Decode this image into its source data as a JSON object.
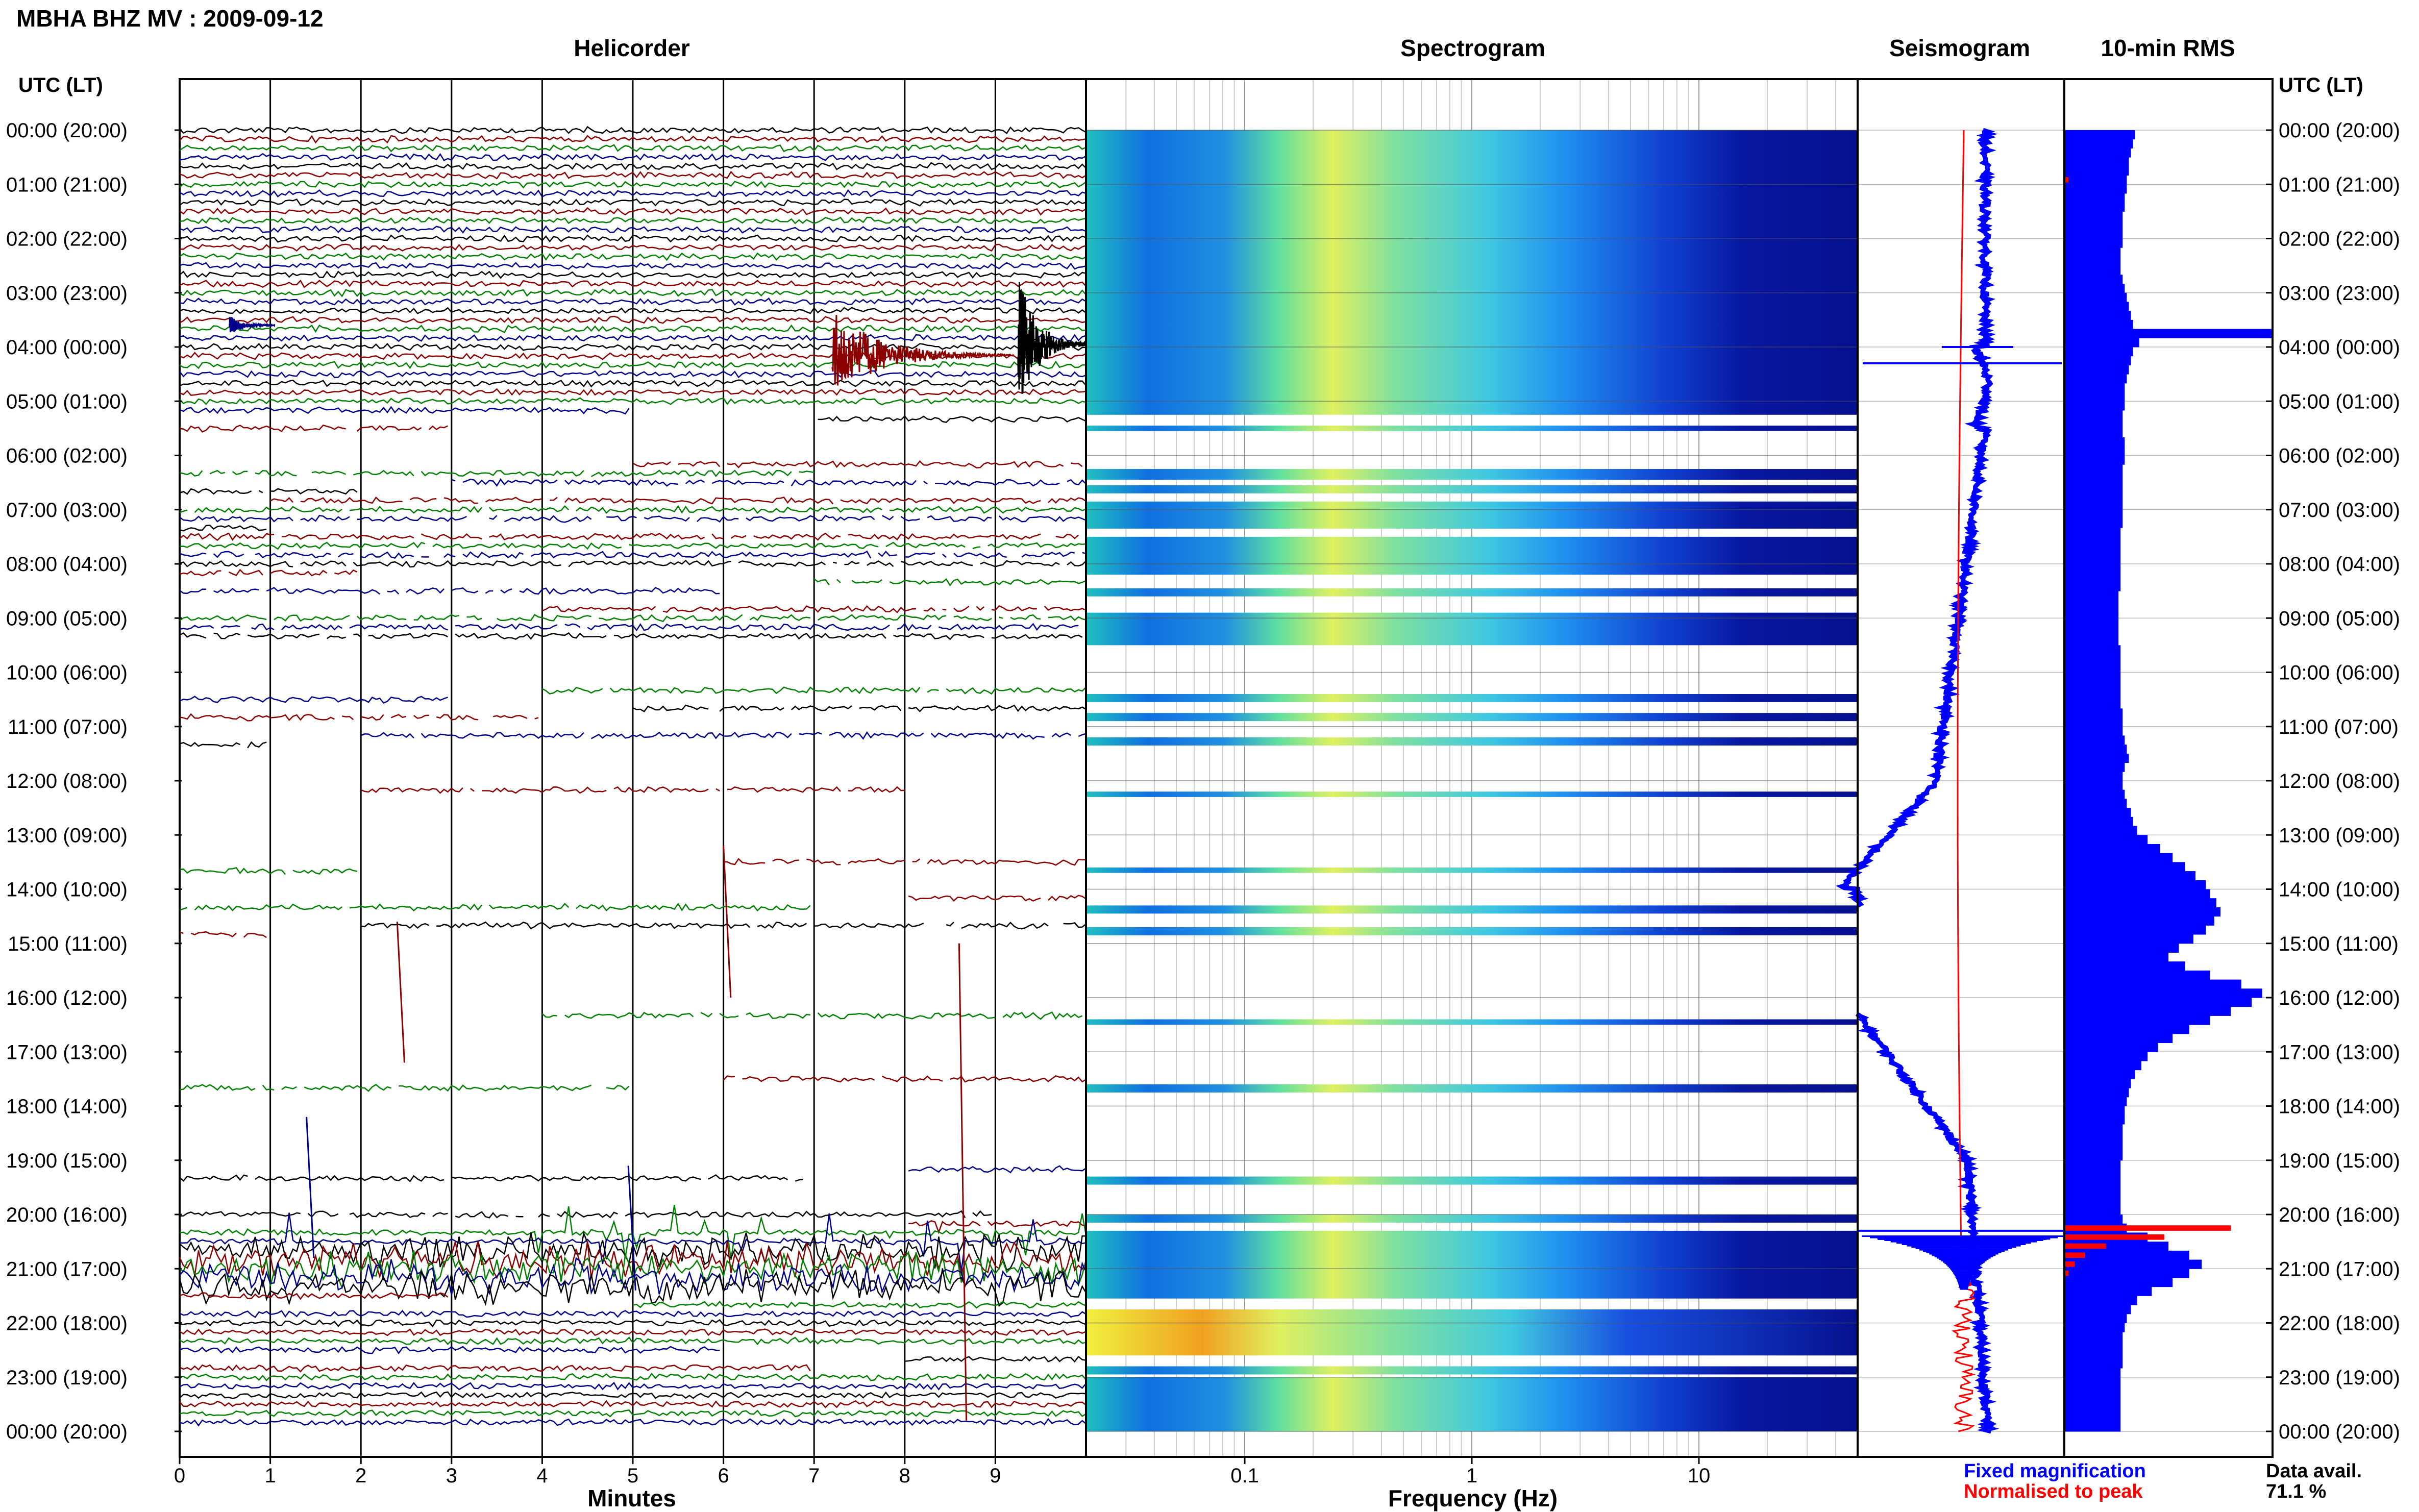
{
  "header": {
    "title": "MBHA BHZ MV : 2009-09-12"
  },
  "panels": {
    "helicorder": "Helicorder",
    "spectrogram": "Spectrogram",
    "seismogram": "Seismogram",
    "rms": "10-min RMS"
  },
  "axes": {
    "time_axis_label": "UTC (LT)",
    "minutes_label": "Minutes",
    "frequency_label": "Frequency (Hz)"
  },
  "legend": {
    "fixed": "Fixed magnification",
    "normalised": "Normalised to peak",
    "fixed_color": "#0000ff",
    "normalised_color": "#ff0000"
  },
  "availability": {
    "label": "Data avail.",
    "value": "71.1 %"
  },
  "colors": {
    "trace_cycle": [
      "#000000",
      "#8b0000",
      "#008000",
      "#00008b"
    ],
    "rms_bar": "#0000ff",
    "rms_peak": "#ff0000"
  },
  "chart_data": {
    "type": "heatmap",
    "time_ticks": [
      "00:00 (20:00)",
      "01:00 (21:00)",
      "02:00 (22:00)",
      "03:00 (23:00)",
      "04:00 (00:00)",
      "05:00 (01:00)",
      "06:00 (02:00)",
      "07:00 (03:00)",
      "08:00 (04:00)",
      "09:00 (05:00)",
      "10:00 (06:00)",
      "11:00 (07:00)",
      "12:00 (08:00)",
      "13:00 (09:00)",
      "14:00 (10:00)",
      "15:00 (11:00)",
      "16:00 (12:00)",
      "17:00 (13:00)",
      "18:00 (14:00)",
      "19:00 (15:00)",
      "20:00 (16:00)",
      "21:00 (17:00)",
      "22:00 (18:00)",
      "23:00 (19:00)",
      "00:00 (20:00)"
    ],
    "minute_ticks": [
      "0",
      "1",
      "2",
      "3",
      "4",
      "5",
      "6",
      "7",
      "8",
      "9"
    ],
    "minute_range": [
      0,
      10
    ],
    "frequency_ticks": [
      "0.1",
      "1",
      "10"
    ],
    "frequency_range": [
      0.02,
      50
    ],
    "frequency_scale": "log",
    "time_range_hours": [
      0,
      24
    ],
    "rms_bars_10min": [
      0.34,
      0.33,
      0.32,
      0.31,
      0.31,
      0.3,
      0.3,
      0.29,
      0.29,
      0.28,
      0.28,
      0.28,
      0.28,
      0.27,
      0.27,
      0.27,
      0.28,
      0.29,
      0.3,
      0.31,
      0.32,
      0.33,
      1.0,
      0.36,
      0.33,
      0.32,
      0.31,
      0.3,
      0.29,
      0.29,
      0.29,
      0.28,
      0.28,
      0.28,
      0.29,
      0.29,
      0.29,
      0.28,
      0.28,
      0.28,
      0.28,
      0.28,
      0.28,
      0.28,
      0.27,
      0.27,
      0.27,
      0.27,
      0.27,
      0.27,
      0.27,
      0.26,
      0.26,
      0.26,
      0.26,
      0.26,
      0.26,
      0.27,
      0.27,
      0.27,
      0.27,
      0.27,
      0.27,
      0.27,
      0.28,
      0.28,
      0.28,
      0.29,
      0.3,
      0.31,
      0.29,
      0.28,
      0.28,
      0.29,
      0.3,
      0.32,
      0.33,
      0.35,
      0.4,
      0.46,
      0.52,
      0.58,
      0.63,
      0.68,
      0.7,
      0.73,
      0.75,
      0.72,
      0.68,
      0.62,
      0.55,
      0.5,
      0.58,
      0.7,
      0.85,
      0.95,
      0.9,
      0.8,
      0.7,
      0.6,
      0.52,
      0.45,
      0.4,
      0.37,
      0.34,
      0.32,
      0.31,
      0.3,
      0.29,
      0.29,
      0.28,
      0.28,
      0.28,
      0.28,
      0.27,
      0.27,
      0.27,
      0.27,
      0.27,
      0.27,
      0.28,
      0.3,
      0.4,
      0.5,
      0.6,
      0.66,
      0.6,
      0.52,
      0.42,
      0.35,
      0.32,
      0.3,
      0.29,
      0.28,
      0.28,
      0.28,
      0.28,
      0.27,
      0.27,
      0.27,
      0.27,
      0.27,
      0.27,
      0.27
    ],
    "rms_peak_10min": [
      0,
      0,
      0,
      0,
      0,
      0.02,
      0,
      0,
      0,
      0,
      0,
      0,
      0,
      0,
      0,
      0,
      0,
      0,
      0,
      0,
      0,
      0,
      0,
      0,
      0,
      0,
      0,
      0,
      0,
      0,
      0,
      0,
      0,
      0,
      0,
      0,
      0,
      0,
      0,
      0,
      0,
      0,
      0,
      0,
      0,
      0,
      0,
      0,
      0,
      0,
      0,
      0,
      0,
      0,
      0,
      0,
      0,
      0,
      0,
      0,
      0,
      0,
      0,
      0,
      0,
      0,
      0,
      0,
      0,
      0,
      0,
      0,
      0,
      0,
      0,
      0,
      0,
      0,
      0,
      0,
      0,
      0,
      0,
      0,
      0,
      0,
      0,
      0,
      0,
      0,
      0,
      0,
      0,
      0,
      0,
      0,
      0,
      0,
      0,
      0,
      0,
      0,
      0,
      0,
      0,
      0,
      0,
      0,
      0,
      0,
      0,
      0,
      0,
      0,
      0,
      0,
      0,
      0,
      0,
      0,
      0,
      0.8,
      0.48,
      0.2,
      0.1,
      0.05,
      0.02,
      0,
      0,
      0,
      0,
      0,
      0,
      0,
      0,
      0,
      0,
      0,
      0,
      0,
      0,
      0,
      0,
      0
    ]
  }
}
